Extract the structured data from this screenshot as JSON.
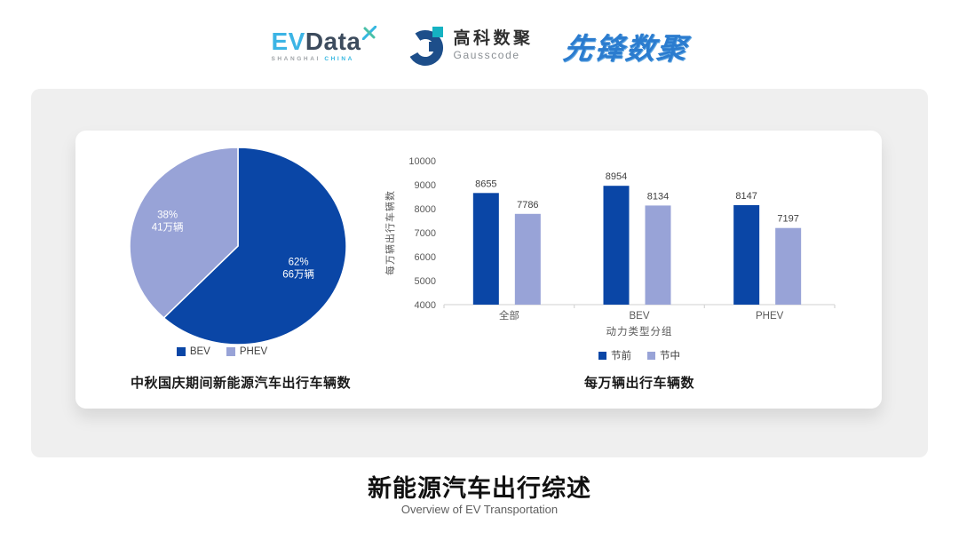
{
  "header": {
    "evdata": {
      "ev": "EV",
      "data": "Data",
      "sub_left": "SHANGHAI",
      "sub_right": "CHINA"
    },
    "gausscode": {
      "name_cn": "高科数聚",
      "name_en": "Gausscode"
    },
    "xianfeng": {
      "name": "先锋数聚"
    }
  },
  "footer": {
    "title": "新能源汽车出行综述",
    "subtitle": "Overview of EV Transportation"
  },
  "colors": {
    "series_dark": "#0a46a6",
    "series_light": "#98a3d7",
    "panel_bg": "#efefef",
    "axis_line": "#d9d9d9",
    "axis_text": "#595959",
    "value_text": "#404040"
  },
  "chart_data": [
    {
      "type": "pie",
      "title": "中秋国庆期间新能源汽车出行车辆数",
      "unit": "万辆",
      "slices": [
        {
          "label": "BEV",
          "percent": 62,
          "value": 66,
          "pct_label": "62%",
          "qty_label": "66万辆",
          "color": "#0a46a6"
        },
        {
          "label": "PHEV",
          "percent": 38,
          "value": 41,
          "pct_label": "38%",
          "qty_label": "41万辆",
          "color": "#98a3d7"
        }
      ],
      "start_angle": "12-oclock",
      "direction": "clockwise",
      "legend_position": "bottom"
    },
    {
      "type": "bar",
      "title": "每万辆出行车辆数",
      "categories": [
        "全部",
        "BEV",
        "PHEV"
      ],
      "series": [
        {
          "name": "节前",
          "values": [
            8655,
            8954,
            8147
          ],
          "color": "#0a46a6"
        },
        {
          "name": "节中",
          "values": [
            7786,
            8134,
            7197
          ],
          "color": "#98a3d7"
        }
      ],
      "xlabel": "动力类型分组",
      "ylabel": "每万辆出行车辆数",
      "ylim": [
        4000,
        10000
      ],
      "ytick_step": 1000,
      "grid": false,
      "legend_position": "bottom"
    }
  ]
}
